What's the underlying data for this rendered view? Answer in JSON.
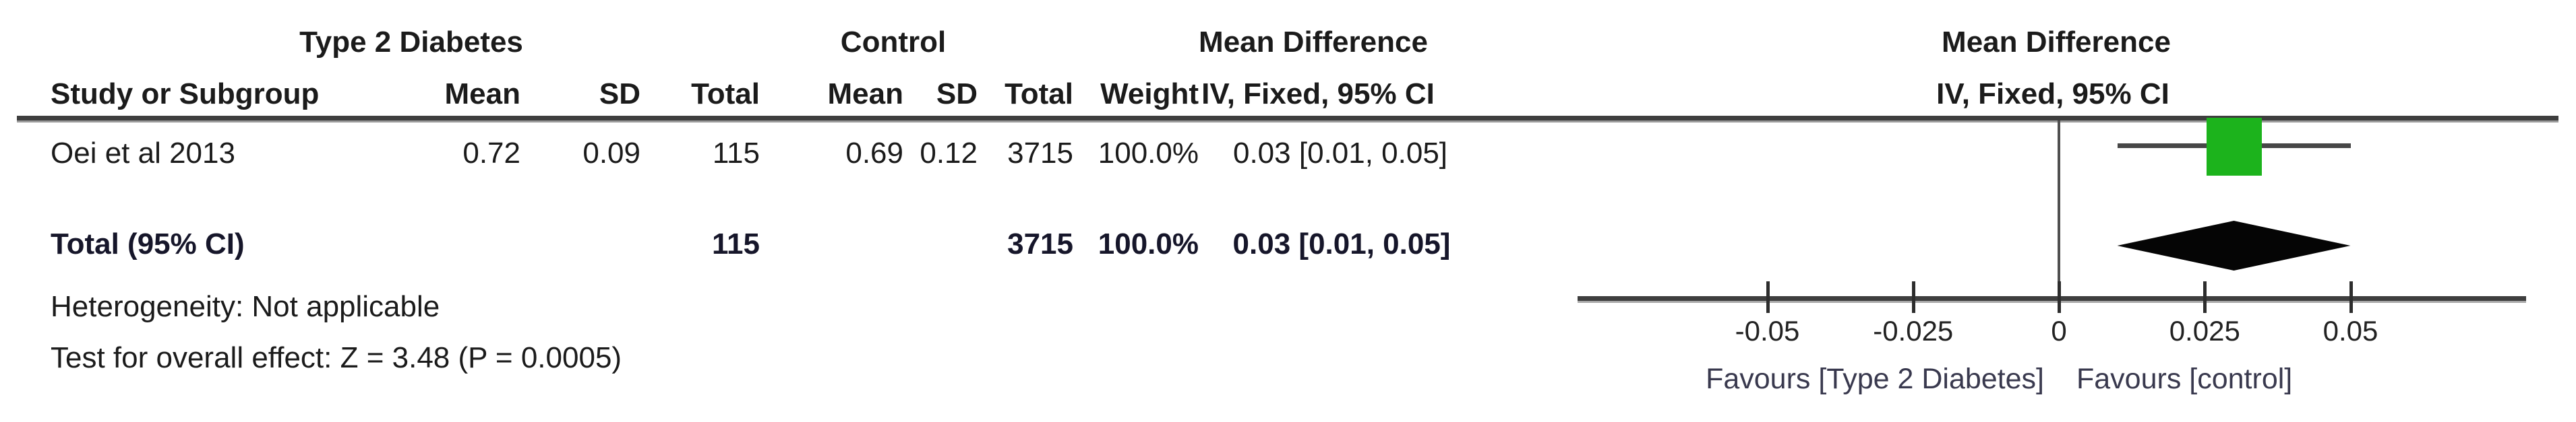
{
  "table": {
    "group1_header": "Type 2 Diabetes",
    "group2_header": "Control",
    "effect_header": "Mean Difference",
    "effect_subheader": "IV, Fixed, 95% CI",
    "columns": {
      "study": "Study or Subgroup",
      "mean": "Mean",
      "sd": "SD",
      "total": "Total",
      "weight": "Weight"
    },
    "rows": [
      {
        "study": "Oei et al 2013",
        "mean1": "0.72",
        "sd1": "0.09",
        "total1": "115",
        "mean2": "0.69",
        "sd2": "0.12",
        "total2": "3715",
        "weight": "100.0%",
        "ci_text": "0.03 [0.01, 0.05]"
      }
    ],
    "total_row": {
      "label": "Total (95% CI)",
      "total1": "115",
      "total2": "3715",
      "weight": "100.0%",
      "ci_text": "0.03 [0.01, 0.05]"
    },
    "footnotes": {
      "heterogeneity": "Heterogeneity: Not applicable",
      "overall_effect": "Test for overall effect: Z = 3.48 (P = 0.0005)"
    }
  },
  "plot": {
    "header": "Mean Difference",
    "subheader": "IV, Fixed, 95% CI",
    "favours_left": "Favours [Type 2 Diabetes]",
    "favours_right": "Favours [control]",
    "marker_color": "#1cb31c"
  },
  "chart_data": {
    "type": "forest",
    "title": "Mean Difference, IV, Fixed, 95% CI",
    "x_axis": {
      "ticks": [
        -0.05,
        -0.025,
        0,
        0.025,
        0.05
      ],
      "tick_labels": [
        "-0.05",
        "-0.025",
        "0",
        "0.025",
        "0.05"
      ],
      "zero_line": 0
    },
    "studies": [
      {
        "name": "Oei et al 2013",
        "md": 0.03,
        "ci_low": 0.01,
        "ci_high": 0.05,
        "weight_pct": 100.0
      }
    ],
    "total": {
      "md": 0.03,
      "ci_low": 0.01,
      "ci_high": 0.05
    }
  }
}
